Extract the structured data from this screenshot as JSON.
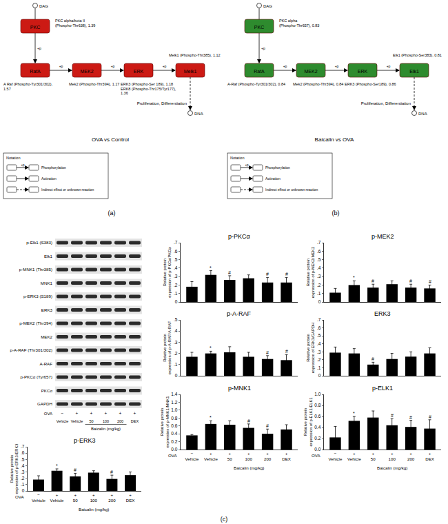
{
  "panel_labels": [
    "(a)",
    "(b)",
    "(c)"
  ],
  "diagrams": [
    {
      "title": "OVA vs Control",
      "color": "#cc1a14",
      "dag": "DAG",
      "dna": "DNA",
      "outcome": "Proliferation, Differentiation",
      "edge_label": "+p",
      "nodes": [
        "PKC",
        "RafA",
        "MEK2",
        "ERK",
        "Melk1"
      ],
      "node_labels": [
        [
          "PKC alpha/beta II",
          "(Phospho-Thr638), 1.39"
        ],
        [
          "A Raf (Phospho-Tyr301/302),",
          "1.57"
        ],
        [
          "Mek2 (Phospho-Thr394), 1.17"
        ],
        [
          "ERK3 (Phospho-Ser 189), 1.18",
          "ERK8 (Phospho-Thr175/Tyr177),",
          "1.36"
        ],
        [
          "Melk1 (Phospho-Thr385), 1.12"
        ]
      ],
      "notation": {
        "title": "Notation",
        "items": [
          {
            "symbol": "+p",
            "label": "Phosphorylation",
            "line_style": "solid"
          },
          {
            "label": "Activation",
            "line_style": "solid"
          },
          {
            "label": "Indirect effect or unknown reaction",
            "line_style": "dashed"
          }
        ]
      }
    },
    {
      "title": "Baicalin vs OVA",
      "color": "#2e8b2e",
      "dag": "DAG",
      "dna": "DNA",
      "outcome": "Proliferation, Differentiation",
      "edge_label": "+p",
      "nodes": [
        "PKC",
        "RafA",
        "MEK2",
        "ERK",
        "Elk1"
      ],
      "node_labels": [
        [
          "PKC alpha",
          "(Phospho-Thr657), 0.83"
        ],
        [
          "A-Raf (Phospho-Tyr301/302), 0.84"
        ],
        [
          "Mek2 (Phospho-Thr394), 0.84"
        ],
        [
          "ERK3 (Phospho-Ser189), 0.86"
        ],
        [
          "Elk1 (Phospho-Ser383), 0.81"
        ]
      ],
      "notation": {
        "title": "Notation",
        "items": [
          {
            "symbol": "+p",
            "label": "Phosphorylation",
            "line_style": "solid"
          },
          {
            "label": "Activation",
            "line_style": "solid"
          },
          {
            "label": "Indirect effect or unknown reaction",
            "line_style": "dashed"
          }
        ]
      }
    }
  ],
  "blot": {
    "rows": [
      "p-Elk1 (S383)",
      "Elk1",
      "p-MNK1 (Thr385)",
      "MNK1",
      "p-ERK3 (S189)",
      "ERK3",
      "p-MEK2 (Thr394)",
      "MEK2",
      "p-A-RAF (Thr301/302)",
      "A-RAF",
      "p-PKCα (Tyr657)",
      "PKCα",
      "GAPDH"
    ],
    "ova_label": "OVA",
    "ova": [
      "−",
      "+",
      "+",
      "+",
      "+",
      "+"
    ],
    "treatments": [
      "Vehicle",
      "Vehicle",
      "50",
      "100",
      "200",
      "DEX"
    ],
    "group_label": "Baicalin (mg/kg)"
  },
  "chart_data": [
    {
      "type": "bar",
      "title": "p-PKCα",
      "y_label": "Relative protein expression of p-PKCα/PKCα",
      "categories": [
        "Vehicle",
        "Vehicle",
        "50",
        "100",
        "200",
        "DEX"
      ],
      "values": [
        0.18,
        0.32,
        0.26,
        0.28,
        0.23,
        0.23
      ],
      "errors": [
        0.06,
        0.05,
        0.05,
        0.04,
        0.06,
        0.06
      ],
      "significance": [
        null,
        "*",
        "#",
        null,
        "#",
        "#"
      ],
      "color": "#000000",
      "grid": false,
      "tick_labels": "y",
      "ylim": [
        0,
        0.7
      ],
      "yticks": [
        0,
        {
          "value": 0.1,
          "label": ".1"
        },
        {
          "value": 0.2,
          "label": ".2"
        },
        {
          "value": 0.3,
          "label": ".3"
        },
        {
          "value": 0.4,
          "label": ".4"
        },
        {
          "value": 0.5,
          "label": ".5"
        },
        {
          "value": 0.6,
          "label": ".6"
        },
        {
          "value": 0.7,
          "label": ".7"
        }
      ]
    },
    {
      "type": "bar",
      "title": "p-MEK2",
      "y_label": "Relative protein expression of p-MEK2/MEK2",
      "categories": [
        "Vehicle",
        "Vehicle",
        "50",
        "100",
        "200",
        "DEX"
      ],
      "values": [
        0.11,
        0.2,
        0.17,
        0.21,
        0.17,
        0.16
      ],
      "errors": [
        0.05,
        0.05,
        0.04,
        0.04,
        0.04,
        0.04
      ],
      "significance": [
        null,
        "*",
        "#",
        null,
        "#",
        "#"
      ],
      "color": "#000000",
      "grid": false,
      "tick_labels": "y",
      "ylim": [
        0,
        0.7
      ],
      "yticks": [
        0,
        {
          "value": 0.1,
          "label": ".1"
        },
        {
          "value": 0.2,
          "label": ".2"
        },
        {
          "value": 0.3,
          "label": ".3"
        },
        {
          "value": 0.4,
          "label": ".4"
        },
        {
          "value": 0.5,
          "label": ".5"
        },
        {
          "value": 0.6,
          "label": ".6"
        },
        {
          "value": 0.7,
          "label": ".7"
        }
      ]
    },
    {
      "type": "bar",
      "title": "p-A-RAF",
      "y_label": "Relative protein expression of p-A-RAF/A-RAF",
      "categories": [
        "Vehicle",
        "Vehicle",
        "50",
        "100",
        "200",
        "DEX"
      ],
      "values": [
        0.17,
        0.2,
        0.21,
        0.17,
        0.15,
        0.14
      ],
      "errors": [
        0.04,
        0.02,
        0.05,
        0.04,
        0.03,
        0.05
      ],
      "significance": [
        null,
        "*",
        null,
        null,
        "#",
        "#"
      ],
      "color": "#000000",
      "grid": false,
      "tick_labels": "y",
      "ylim": [
        0,
        0.5
      ],
      "yticks": [
        0,
        {
          "value": 0.1,
          "label": ".1"
        },
        {
          "value": 0.2,
          "label": ".2"
        },
        {
          "value": 0.3,
          "label": ".3"
        },
        {
          "value": 0.4,
          "label": ".4"
        },
        {
          "value": 0.5,
          "label": ".5"
        }
      ]
    },
    {
      "type": "bar",
      "title": "ERK3",
      "y_label": "Relative protein expression of ERK3/GAPDH",
      "categories": [
        "Vehicle",
        "Vehicle",
        "50",
        "100",
        "200",
        "DEX"
      ],
      "values": [
        0.29,
        0.28,
        0.14,
        0.21,
        0.24,
        0.28
      ],
      "errors": [
        0.07,
        0.06,
        0.03,
        0.07,
        0.06,
        0.07
      ],
      "significance": [
        null,
        null,
        "#",
        null,
        null,
        null
      ],
      "color": "#000000",
      "grid": false,
      "tick_labels": "y",
      "ylim": [
        0,
        0.7
      ],
      "yticks": [
        0,
        {
          "value": 0.1,
          "label": ".1"
        },
        {
          "value": 0.2,
          "label": ".2"
        },
        {
          "value": 0.3,
          "label": ".3"
        },
        {
          "value": 0.4,
          "label": ".4"
        },
        {
          "value": 0.5,
          "label": ".5"
        },
        {
          "value": 0.6,
          "label": ".6"
        },
        {
          "value": 0.7,
          "label": ".7"
        }
      ]
    },
    {
      "type": "bar",
      "title": "p-MNK1",
      "y_label": "Relative protein expression of p-MNK1/MNK1",
      "categories": [
        "Vehicle",
        "Vehicle",
        "50",
        "100",
        "200",
        "DEX"
      ],
      "ova_label": "OVA",
      "ova": [
        "−",
        "+",
        "+",
        "+",
        "+",
        "+"
      ],
      "group_label": "Baicalin (mg/kg)",
      "values": [
        0.36,
        0.65,
        0.63,
        0.55,
        0.4,
        0.51
      ],
      "errors": [
        0.02,
        0.08,
        0.1,
        0.1,
        0.12,
        0.12
      ],
      "significance": [
        null,
        "*",
        null,
        "#",
        "#",
        null
      ],
      "color": "#000000",
      "grid": false,
      "ylim": [
        0,
        1.4
      ],
      "yticks": [
        {
          "value": 0,
          "label": "0.0"
        },
        0.2,
        0.4,
        0.6,
        0.8,
        {
          "value": 1,
          "label": "1.0"
        },
        1.2,
        1.4
      ]
    },
    {
      "type": "bar",
      "title": "p-ELK1",
      "y_label": "Relative protein expression of p-ELK1/ELK1",
      "categories": [
        "Vehicle",
        "Vehicle",
        "50",
        "100",
        "200",
        "DEX"
      ],
      "ova_label": "OVA",
      "ova": [
        "−",
        "+",
        "+",
        "+",
        "+",
        "+"
      ],
      "group_label": "Baicalin (mg/kg)",
      "values": [
        0.22,
        0.52,
        0.58,
        0.44,
        0.41,
        0.38
      ],
      "errors": [
        0.2,
        0.08,
        0.12,
        0.12,
        0.12,
        0.16
      ],
      "significance": [
        null,
        "*",
        null,
        "#",
        "#",
        "#"
      ],
      "color": "#000000",
      "grid": false,
      "ylim": [
        0,
        1
      ],
      "yticks": [
        {
          "value": 0,
          "label": "0.0"
        },
        0.2,
        0.4,
        0.6,
        0.8,
        {
          "value": 1,
          "label": "1.0"
        }
      ]
    },
    {
      "type": "bar",
      "title": "p-ERK3",
      "y_label": "Relative protein expression of p-ERK3/ERK3",
      "categories": [
        "Vehicle",
        "Vehicle",
        "50",
        "100",
        "200",
        "DEX"
      ],
      "ova_label": "OVA",
      "ova": [
        "−",
        "+",
        "+",
        "+",
        "+",
        "+"
      ],
      "group_label": "Baicalin (mg/kg)",
      "values": [
        0.18,
        0.32,
        0.23,
        0.29,
        0.19,
        0.25
      ],
      "errors": [
        0.06,
        0.03,
        0.05,
        0.03,
        0.06,
        0.05
      ],
      "significance": [
        null,
        "*",
        "#",
        null,
        "#",
        null
      ],
      "color": "#000000",
      "grid": false,
      "ylim": [
        0,
        0.7
      ],
      "yticks": [
        0,
        {
          "value": 0.1,
          "label": ".1"
        },
        {
          "value": 0.2,
          "label": ".2"
        },
        {
          "value": 0.3,
          "label": ".3"
        },
        {
          "value": 0.4,
          "label": ".4"
        },
        {
          "value": 0.5,
          "label": ".5"
        },
        {
          "value": 0.6,
          "label": ".6"
        },
        {
          "value": 0.7,
          "label": ".7"
        }
      ]
    }
  ]
}
